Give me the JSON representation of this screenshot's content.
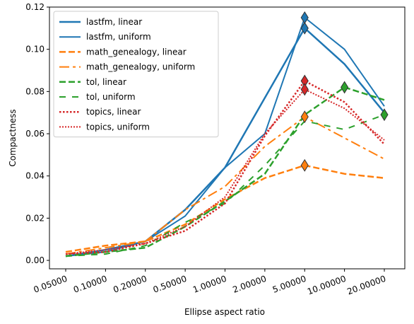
{
  "chart_data": {
    "type": "line",
    "xlabel": "Ellipse aspect ratio",
    "ylabel": "Compactness",
    "categories": [
      "0.05000",
      "0.10000",
      "0.20000",
      "0.50000",
      "1.00000",
      "2.00000",
      "5.00000",
      "10.00000",
      "20.00000"
    ],
    "x_scale": "categorical",
    "ylim": [
      -0.004,
      0.12
    ],
    "yticks": [
      0.0,
      0.02,
      0.04,
      0.06,
      0.08,
      0.1,
      0.12
    ],
    "ytick_labels": [
      "0.00",
      "0.02",
      "0.04",
      "0.06",
      "0.08",
      "0.10",
      "0.12"
    ],
    "grid": false,
    "legend_position": "top-left",
    "series": [
      {
        "name": "lastfm, linear",
        "color": "#1f77b4",
        "style": "solid",
        "width": 2.5,
        "values": [
          0.002,
          0.005,
          0.009,
          0.024,
          0.044,
          0.077,
          0.11,
          0.093,
          0.07
        ],
        "marker_index": 6
      },
      {
        "name": "lastfm, uniform",
        "color": "#1f77b4",
        "style": "solid",
        "width": 2.0,
        "values": [
          0.002,
          0.004,
          0.009,
          0.021,
          0.044,
          0.06,
          0.115,
          0.1,
          0.073
        ],
        "marker_index": 6
      },
      {
        "name": "math_genealogy, linear",
        "color": "#ff7f0e",
        "style": "dashed",
        "width": 2.5,
        "values": [
          0.004,
          0.007,
          0.009,
          0.017,
          0.029,
          0.039,
          0.045,
          0.041,
          0.039
        ],
        "marker_index": 6
      },
      {
        "name": "math_genealogy, uniform",
        "color": "#ff7f0e",
        "style": "dashdot",
        "width": 2.0,
        "values": [
          0.003,
          0.006,
          0.009,
          0.024,
          0.035,
          0.054,
          0.068,
          0.058,
          0.048
        ],
        "marker_index": 6
      },
      {
        "name": "tol, linear",
        "color": "#2ca02c",
        "style": "dashed",
        "width": 2.5,
        "values": [
          0.002,
          0.004,
          0.006,
          0.016,
          0.028,
          0.041,
          0.069,
          0.082,
          0.076
        ],
        "marker_index": 7
      },
      {
        "name": "tol, uniform",
        "color": "#2ca02c",
        "style": "dashed2",
        "width": 2.0,
        "values": [
          0.002,
          0.003,
          0.007,
          0.018,
          0.027,
          0.045,
          0.066,
          0.062,
          0.069
        ],
        "marker_index": 8
      },
      {
        "name": "topics, linear",
        "color": "#d62728",
        "style": "dotted",
        "width": 2.5,
        "values": [
          0.003,
          0.004,
          0.008,
          0.014,
          0.027,
          0.059,
          0.085,
          0.075,
          0.055
        ],
        "marker_index": 6
      },
      {
        "name": "topics, uniform",
        "color": "#d62728",
        "style": "dotted2",
        "width": 2.0,
        "values": [
          0.003,
          0.005,
          0.008,
          0.016,
          0.03,
          0.06,
          0.081,
          0.072,
          0.057
        ],
        "marker_index": 6
      }
    ]
  }
}
